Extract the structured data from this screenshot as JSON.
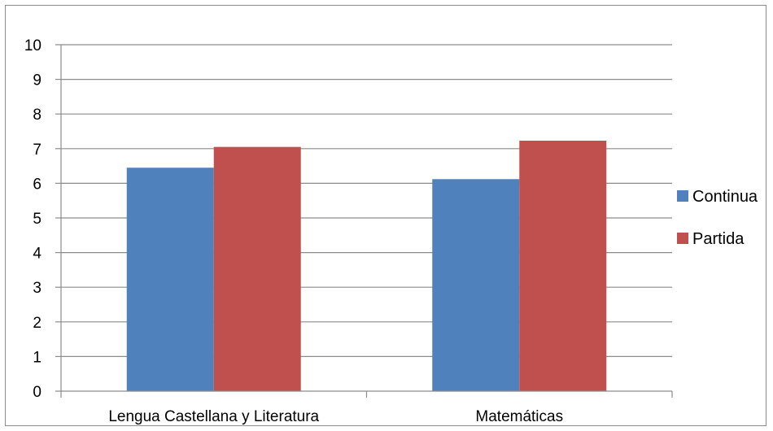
{
  "chart_data": {
    "type": "bar",
    "title": "",
    "xlabel": "",
    "ylabel": "",
    "categories": [
      "Lengua Castellana y Literatura",
      "Matemáticas"
    ],
    "series": [
      {
        "name": "Continua",
        "values": [
          6.45,
          6.12
        ],
        "color": "#4f81bd"
      },
      {
        "name": "Partida",
        "values": [
          7.05,
          7.23
        ],
        "color": "#c0504d"
      }
    ],
    "ylim": [
      0,
      10
    ],
    "yticks": [
      "0",
      "1",
      "2",
      "3",
      "4",
      "5",
      "6",
      "7",
      "8",
      "9",
      "10"
    ],
    "grid": true,
    "legend_position": "right"
  }
}
